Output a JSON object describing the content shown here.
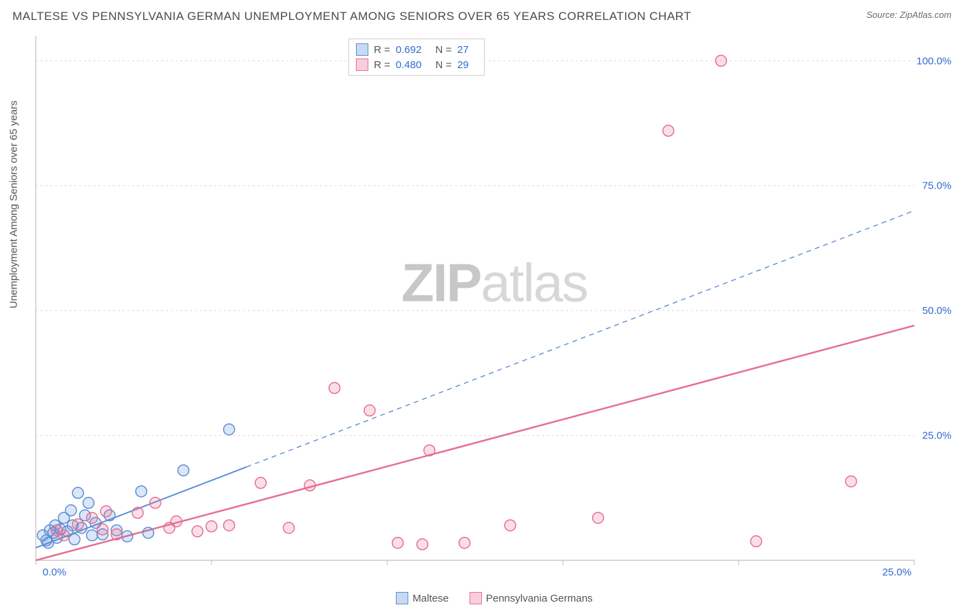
{
  "header": {
    "title": "MALTESE VS PENNSYLVANIA GERMAN UNEMPLOYMENT AMONG SENIORS OVER 65 YEARS CORRELATION CHART",
    "source_prefix": "Source: ",
    "source_name": "ZipAtlas.com"
  },
  "chart": {
    "type": "scatter",
    "ylabel": "Unemployment Among Seniors over 65 years",
    "xlim": [
      0,
      25
    ],
    "ylim": [
      0,
      105
    ],
    "xticks": [
      0,
      5,
      10,
      15,
      20,
      25
    ],
    "xtick_labels": [
      "0.0%",
      "",
      "",
      "",
      "",
      "25.0%"
    ],
    "yticks": [
      0,
      25,
      50,
      75,
      100
    ],
    "ytick_labels": [
      "",
      "25.0%",
      "50.0%",
      "75.0%",
      "100.0%"
    ],
    "grid_color": "#d9d9d9",
    "grid_dash": "3,4",
    "axis_color": "#c0c0c0",
    "tick_label_color": "#2f6bd0",
    "tick_label_fontsize": 15,
    "background_color": "#ffffff",
    "marker_radius": 8,
    "marker_stroke_width": 1.5,
    "marker_fill_opacity": 0.22,
    "series": [
      {
        "name": "Maltese",
        "color": "#5b8fd6",
        "fill": "#5b8fd6",
        "R": "0.692",
        "N": "27",
        "trend": {
          "x1": 0,
          "y1": 2.5,
          "x2": 25,
          "y2": 70,
          "solid_until_x": 6.0,
          "dash": "7,6",
          "width": 2
        },
        "points": [
          [
            0.2,
            5
          ],
          [
            0.3,
            4
          ],
          [
            0.4,
            6
          ],
          [
            0.5,
            5.5
          ],
          [
            0.55,
            7
          ],
          [
            0.6,
            4.5
          ],
          [
            0.7,
            6.2
          ],
          [
            0.8,
            8.5
          ],
          [
            0.9,
            5.8
          ],
          [
            1.0,
            10
          ],
          [
            1.05,
            7
          ],
          [
            1.1,
            4.2
          ],
          [
            1.2,
            13.5
          ],
          [
            1.3,
            6.5
          ],
          [
            1.4,
            9
          ],
          [
            1.5,
            11.5
          ],
          [
            1.6,
            5
          ],
          [
            1.7,
            7.5
          ],
          [
            1.9,
            5.2
          ],
          [
            2.1,
            9
          ],
          [
            2.3,
            6
          ],
          [
            2.6,
            4.8
          ],
          [
            3.0,
            13.8
          ],
          [
            3.2,
            5.5
          ],
          [
            4.2,
            18
          ],
          [
            5.5,
            26.2
          ],
          [
            0.35,
            3.5
          ]
        ]
      },
      {
        "name": "Pennsylvania Germans",
        "color": "#e76f91",
        "fill": "#e76f91",
        "R": "0.480",
        "N": "29",
        "trend": {
          "x1": 0,
          "y1": 0,
          "x2": 25,
          "y2": 47,
          "solid_until_x": 25,
          "dash": "",
          "width": 2.5
        },
        "points": [
          [
            0.6,
            6
          ],
          [
            0.8,
            5
          ],
          [
            1.2,
            7.2
          ],
          [
            1.6,
            8.5
          ],
          [
            2.0,
            9.8
          ],
          [
            2.3,
            5.2
          ],
          [
            2.9,
            9.5
          ],
          [
            3.4,
            11.5
          ],
          [
            3.8,
            6.5
          ],
          [
            4.0,
            7.8
          ],
          [
            4.6,
            5.8
          ],
          [
            5.5,
            7
          ],
          [
            6.4,
            15.5
          ],
          [
            7.2,
            6.5
          ],
          [
            7.8,
            15
          ],
          [
            8.5,
            34.5
          ],
          [
            9.5,
            30
          ],
          [
            10.3,
            3.5
          ],
          [
            11.0,
            3.2
          ],
          [
            11.2,
            22
          ],
          [
            12.2,
            3.5
          ],
          [
            16.0,
            8.5
          ],
          [
            18.0,
            86
          ],
          [
            19.5,
            100
          ],
          [
            20.5,
            3.8
          ],
          [
            23.2,
            15.8
          ],
          [
            1.9,
            6.2
          ],
          [
            5.0,
            6.8
          ],
          [
            13.5,
            7
          ]
        ]
      }
    ],
    "stats_box": {
      "R_label": "R  =",
      "N_label": "N  ="
    },
    "legend_labels": [
      "Maltese",
      "Pennsylvania Germans"
    ],
    "watermark": {
      "zip": "ZIP",
      "atlas": "atlas"
    }
  }
}
